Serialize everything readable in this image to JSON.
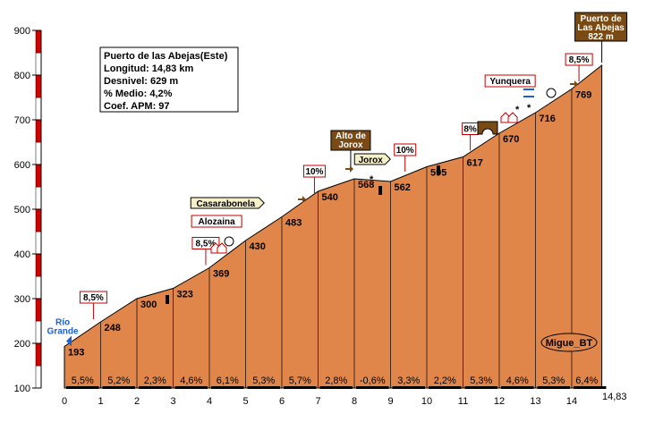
{
  "chart_data": {
    "type": "area",
    "xlim": [
      0,
      14.83
    ],
    "ylim": [
      100,
      900
    ],
    "x_ticks": [
      "0",
      "1",
      "2",
      "3",
      "4",
      "5",
      "6",
      "7",
      "8",
      "9",
      "10",
      "11",
      "12",
      "13",
      "14"
    ],
    "x_end_label": "14,83",
    "y_ticks": [
      "900",
      "800",
      "700",
      "600",
      "500",
      "400",
      "300",
      "200",
      "100"
    ],
    "profile": [
      {
        "x": 0,
        "y": 193
      },
      {
        "x": 1,
        "y": 248
      },
      {
        "x": 2,
        "y": 300
      },
      {
        "x": 3,
        "y": 323
      },
      {
        "x": 4,
        "y": 369
      },
      {
        "x": 5,
        "y": 430
      },
      {
        "x": 6,
        "y": 483
      },
      {
        "x": 7,
        "y": 540
      },
      {
        "x": 8,
        "y": 568
      },
      {
        "x": 9,
        "y": 562
      },
      {
        "x": 10,
        "y": 595
      },
      {
        "x": 11,
        "y": 617
      },
      {
        "x": 12,
        "y": 670
      },
      {
        "x": 13,
        "y": 716
      },
      {
        "x": 14,
        "y": 769
      },
      {
        "x": 14.83,
        "y": 822
      }
    ],
    "point_labels": [
      {
        "x": 0,
        "y": 193,
        "text": "193"
      },
      {
        "x": 1,
        "y": 248,
        "text": "248"
      },
      {
        "x": 2,
        "y": 300,
        "text": "300"
      },
      {
        "x": 3,
        "y": 323,
        "text": "323"
      },
      {
        "x": 4,
        "y": 369,
        "text": "369"
      },
      {
        "x": 5,
        "y": 430,
        "text": "430"
      },
      {
        "x": 6,
        "y": 483,
        "text": "483"
      },
      {
        "x": 7,
        "y": 540,
        "text": "540"
      },
      {
        "x": 8,
        "y": 568,
        "text": "568"
      },
      {
        "x": 9,
        "y": 562,
        "text": "562"
      },
      {
        "x": 10,
        "y": 595,
        "text": "595"
      },
      {
        "x": 11,
        "y": 617,
        "text": "617"
      },
      {
        "x": 12,
        "y": 670,
        "text": "670"
      },
      {
        "x": 13,
        "y": 716,
        "text": "716"
      },
      {
        "x": 14,
        "y": 769,
        "text": "769"
      }
    ],
    "segment_slopes": [
      "5,5%",
      "5,2%",
      "2,3%",
      "4,6%",
      "6,1%",
      "5,3%",
      "5,7%",
      "2,8%",
      "-0,6%",
      "3,3%",
      "2,2%",
      "5,3%",
      "4,6%",
      "5,3%",
      "6,4%"
    ],
    "max_slope_flags": [
      {
        "x": 0.8,
        "y": 248,
        "text": "8,5%"
      },
      {
        "x": 3.9,
        "y": 369,
        "text": "8,5%"
      },
      {
        "x": 6.9,
        "y": 530,
        "text": "10%"
      },
      {
        "x": 9.4,
        "y": 578,
        "text": "10%"
      },
      {
        "x": 11.2,
        "y": 625,
        "text": "8%"
      },
      {
        "x": 14.2,
        "y": 780,
        "text": "8,5%"
      }
    ],
    "places": [
      {
        "x": 0.1,
        "y": 193,
        "text": "Río Grande"
      },
      {
        "x": 4.2,
        "y": 395,
        "text": "Alozaina"
      },
      {
        "x": 4.5,
        "y": 445,
        "text": "Casarabonela"
      },
      {
        "x": 7.9,
        "y": 568,
        "text": "Alto de Jorox"
      },
      {
        "x": 8.5,
        "y": 560,
        "text": "Jorox"
      },
      {
        "x": 12.3,
        "y": 690,
        "text": "Yunquera"
      },
      {
        "x": 14.83,
        "y": 822,
        "text": "Puerto de Las Abejas 822 m"
      }
    ],
    "info_box": {
      "title": "Puerto de las Abejas(Este)",
      "longitud": "Longitud: 14,83 km",
      "desnivel": "Desnivel: 629 m",
      "medio": "% Medio: 4,2%",
      "coef": "Coef. APM: 97"
    },
    "author": "Migue_BT"
  },
  "colors": {
    "profile_fill": "#e0864a",
    "max_slope_flag_border": "#c00000",
    "place_box_border": "#c00000",
    "accent_blue": "#1b5fd6",
    "summit_box_fill": "#7a4a14",
    "y_axis_red": "#d40000"
  }
}
